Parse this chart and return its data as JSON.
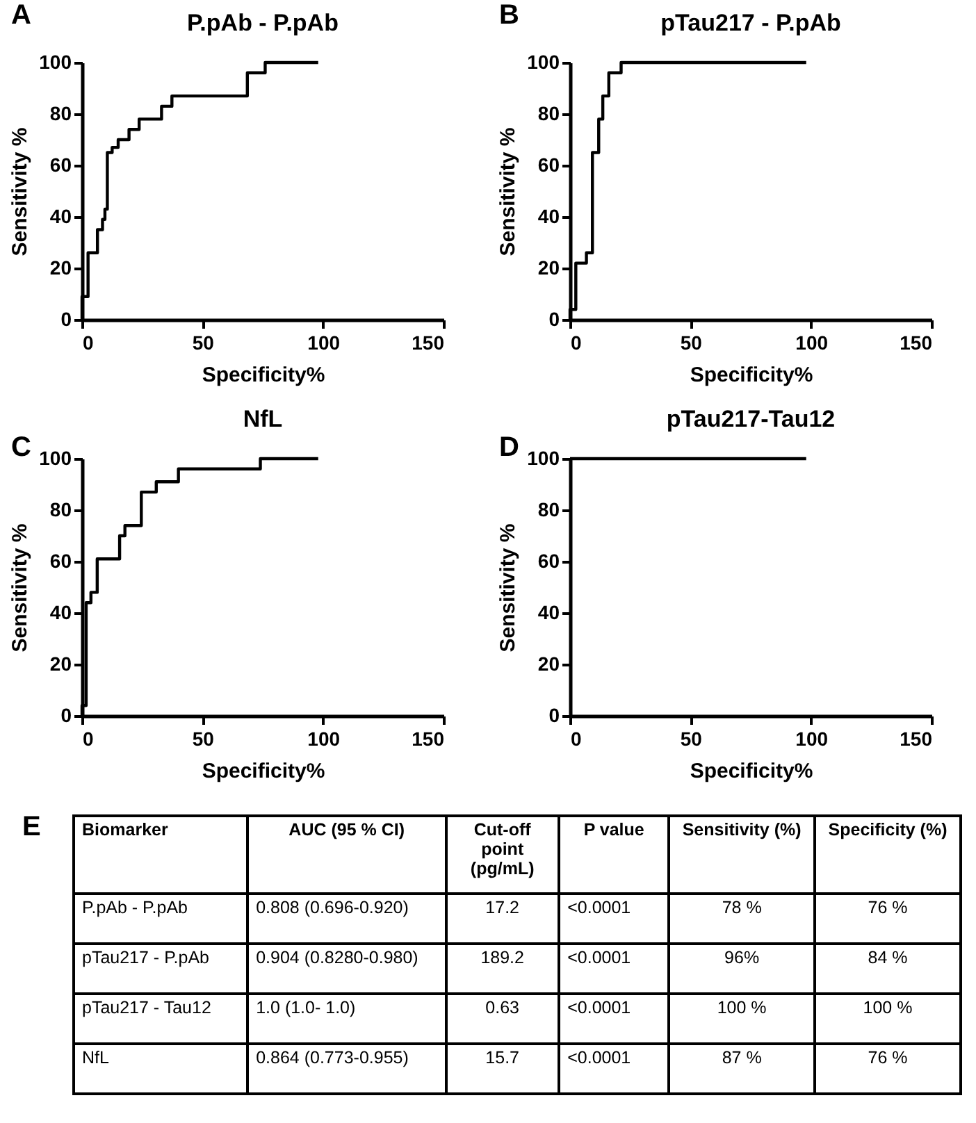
{
  "chart_data": [
    {
      "type": "step",
      "title": "P.pAb - P.pAb",
      "xlabel": "Specificity%",
      "ylabel": "Sensitivity %",
      "xlim": [
        0,
        150
      ],
      "xticks": [
        0,
        50,
        100,
        150
      ],
      "ylim": [
        0,
        100
      ],
      "yticks": [
        0,
        20,
        40,
        60,
        80,
        100
      ],
      "annotations": [
        "A"
      ],
      "series": [
        {
          "color": "#000000",
          "x": [
            0,
            0,
            2.5,
            6.4,
            8.5,
            9.5,
            10.5,
            12.5,
            15,
            19.5,
            23.7,
            33,
            37.3,
            68.6,
            76,
            98
          ],
          "values": [
            0,
            9,
            26,
            35,
            39,
            43,
            65,
            67,
            70,
            74,
            78,
            83,
            87,
            96,
            100,
            100
          ]
        }
      ]
    },
    {
      "type": "step",
      "title": "pTau217 - P.pAb",
      "xlabel": "Specificity%",
      "ylabel": "Sensitivity %",
      "xlim": [
        0,
        150
      ],
      "xticks": [
        0,
        50,
        100,
        150
      ],
      "ylim": [
        0,
        100
      ],
      "yticks": [
        0,
        20,
        40,
        60,
        80,
        100
      ],
      "annotations": [
        "B"
      ],
      "series": [
        {
          "color": "#000000",
          "x": [
            0,
            0,
            2.4,
            6.8,
            9.3,
            11.9,
            13.6,
            16.1,
            21.2,
            98
          ],
          "values": [
            0,
            4,
            22,
            26,
            65,
            78,
            87,
            96,
            100,
            100
          ]
        }
      ]
    },
    {
      "type": "step",
      "title": "NfL",
      "xlabel": "Specificity%",
      "ylabel": "Sensitivity %",
      "xlim": [
        0,
        150
      ],
      "xticks": [
        0,
        50,
        100,
        150
      ],
      "ylim": [
        0,
        100
      ],
      "yticks": [
        0,
        20,
        40,
        60,
        80,
        100
      ],
      "annotations": [
        "C"
      ],
      "series": [
        {
          "color": "#000000",
          "x": [
            0,
            0,
            1.7,
            3.7,
            6.3,
            15.6,
            17.8,
            24.6,
            30.8,
            40,
            74,
            98
          ],
          "values": [
            0,
            4,
            44,
            48,
            61,
            70,
            74,
            87,
            91,
            96,
            100,
            100
          ]
        }
      ]
    },
    {
      "type": "step",
      "title": "pTau217-Tau12",
      "xlabel": "Specificity%",
      "ylabel": "Sensitivity %",
      "xlim": [
        0,
        150
      ],
      "xticks": [
        0,
        50,
        100,
        150
      ],
      "ylim": [
        0,
        100
      ],
      "yticks": [
        0,
        20,
        40,
        60,
        80,
        100
      ],
      "annotations": [
        "D"
      ],
      "series": [
        {
          "color": "#000000",
          "x": [
            0,
            98
          ],
          "values": [
            100,
            100
          ]
        }
      ]
    },
    {
      "type": "other",
      "annotations": [
        "E",
        "Biomarker",
        "AUC (95 % CI)",
        "Cut-off point (pg/mL)",
        "P value",
        "Sensitivity (%)",
        "Specificity (%)",
        "P.pAb - P.pAb",
        "0.808 (0.696-0.920)",
        "17.2",
        "<0.0001",
        "78 %",
        "76 %",
        "pTau217 - P.pAb",
        "0.904 (0.8280-0.980)",
        "189.2",
        "<0.0001",
        "96%",
        "84 %",
        "pTau217 - Tau12",
        "1.0 (1.0- 1.0)",
        "0.63",
        "<0.0001",
        "100 %",
        "100 %",
        "NfL",
        "0.864 (0.773-0.955)",
        "15.7",
        "<0.0001",
        "87 %",
        "76 %"
      ]
    }
  ]
}
